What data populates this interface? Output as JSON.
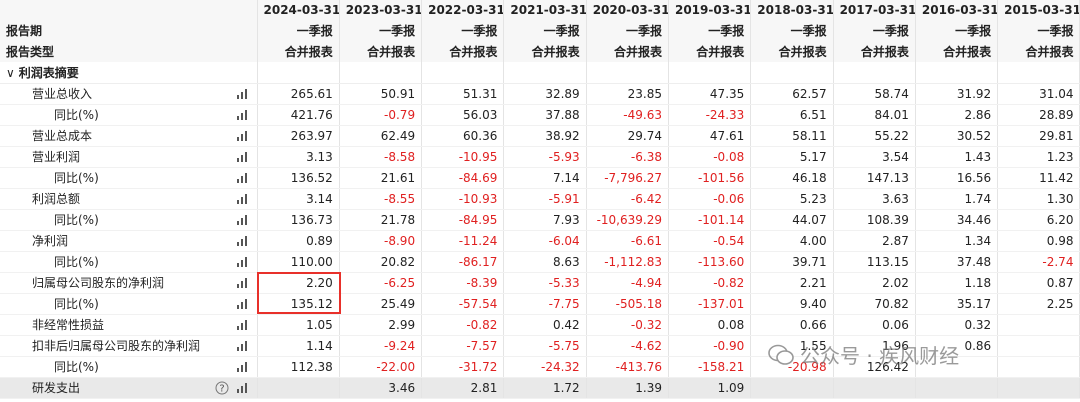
{
  "table": {
    "dates": [
      "2024-03-31",
      "2023-03-31",
      "2022-03-31",
      "2021-03-31",
      "2020-03-31",
      "2019-03-31",
      "2018-03-31",
      "2017-03-31",
      "2016-03-31",
      "2015-03-31"
    ],
    "meta_rows": [
      {
        "label": "报告期",
        "values": [
          "一季报",
          "一季报",
          "一季报",
          "一季报",
          "一季报",
          "一季报",
          "一季报",
          "一季报",
          "一季报",
          "一季报"
        ]
      },
      {
        "label": "报告类型",
        "values": [
          "合并报表",
          "合并报表",
          "合并报表",
          "合并报表",
          "合并报表",
          "合并报表",
          "合并报表",
          "合并报表",
          "合并报表",
          "合并报表"
        ]
      }
    ],
    "section": "利润表摘要",
    "rows": [
      {
        "label": "营业总收入",
        "values": [
          "265.61",
          "50.91",
          "51.31",
          "32.89",
          "23.85",
          "47.35",
          "62.57",
          "58.74",
          "31.92",
          "31.04"
        ]
      },
      {
        "label": "同比(%)",
        "values": [
          "421.76",
          "-0.79",
          "56.03",
          "37.88",
          "-49.63",
          "-24.33",
          "6.51",
          "84.01",
          "2.86",
          "28.89"
        ]
      },
      {
        "label": "营业总成本",
        "values": [
          "263.97",
          "62.49",
          "60.36",
          "38.92",
          "29.74",
          "47.61",
          "58.11",
          "55.22",
          "30.52",
          "29.81"
        ]
      },
      {
        "label": "营业利润",
        "values": [
          "3.13",
          "-8.58",
          "-10.95",
          "-5.93",
          "-6.38",
          "-0.08",
          "5.17",
          "3.54",
          "1.43",
          "1.23"
        ]
      },
      {
        "label": "同比(%)",
        "values": [
          "136.52",
          "21.61",
          "-84.69",
          "7.14",
          "-7,796.27",
          "-101.56",
          "46.18",
          "147.13",
          "16.56",
          "11.42"
        ]
      },
      {
        "label": "利润总额",
        "values": [
          "3.14",
          "-8.55",
          "-10.93",
          "-5.91",
          "-6.42",
          "-0.06",
          "5.23",
          "3.63",
          "1.74",
          "1.30"
        ]
      },
      {
        "label": "同比(%)",
        "values": [
          "136.73",
          "21.78",
          "-84.95",
          "7.93",
          "-10,639.29",
          "-101.14",
          "44.07",
          "108.39",
          "34.46",
          "6.20"
        ]
      },
      {
        "label": "净利润",
        "values": [
          "0.89",
          "-8.90",
          "-11.24",
          "-6.04",
          "-6.61",
          "-0.54",
          "4.00",
          "2.87",
          "1.34",
          "0.98"
        ]
      },
      {
        "label": "同比(%)",
        "values": [
          "110.00",
          "20.82",
          "-86.17",
          "8.63",
          "-1,112.83",
          "-113.60",
          "39.71",
          "113.15",
          "37.48",
          "-2.74"
        ]
      },
      {
        "label": "归属母公司股东的净利润",
        "values": [
          "2.20",
          "-6.25",
          "-8.39",
          "-5.33",
          "-4.94",
          "-0.82",
          "2.21",
          "2.02",
          "1.18",
          "0.87"
        ]
      },
      {
        "label": "同比(%)",
        "values": [
          "135.12",
          "25.49",
          "-57.54",
          "-7.75",
          "-505.18",
          "-137.01",
          "9.40",
          "70.82",
          "35.17",
          "2.25"
        ]
      },
      {
        "label": "非经常性损益",
        "values": [
          "1.05",
          "2.99",
          "-0.82",
          "0.42",
          "-0.32",
          "0.08",
          "0.66",
          "0.06",
          "0.32",
          null
        ]
      },
      {
        "label": "扣非后归属母公司股东的净利润",
        "values": [
          "1.14",
          "-9.24",
          "-7.57",
          "-5.75",
          "-4.62",
          "-0.90",
          "1.55",
          "1.96",
          "0.86",
          null
        ]
      },
      {
        "label": "同比(%)",
        "values": [
          "112.38",
          "-22.00",
          "-31.72",
          "-24.32",
          "-413.76",
          "-158.21",
          "-20.98",
          "126.42",
          null,
          null
        ]
      },
      {
        "label": "研发支出",
        "values": [
          null,
          "3.46",
          "2.81",
          "1.72",
          "1.39",
          "1.09",
          null,
          null,
          null,
          null
        ]
      }
    ]
  },
  "watermark": "公众号 · 疾风财经"
}
